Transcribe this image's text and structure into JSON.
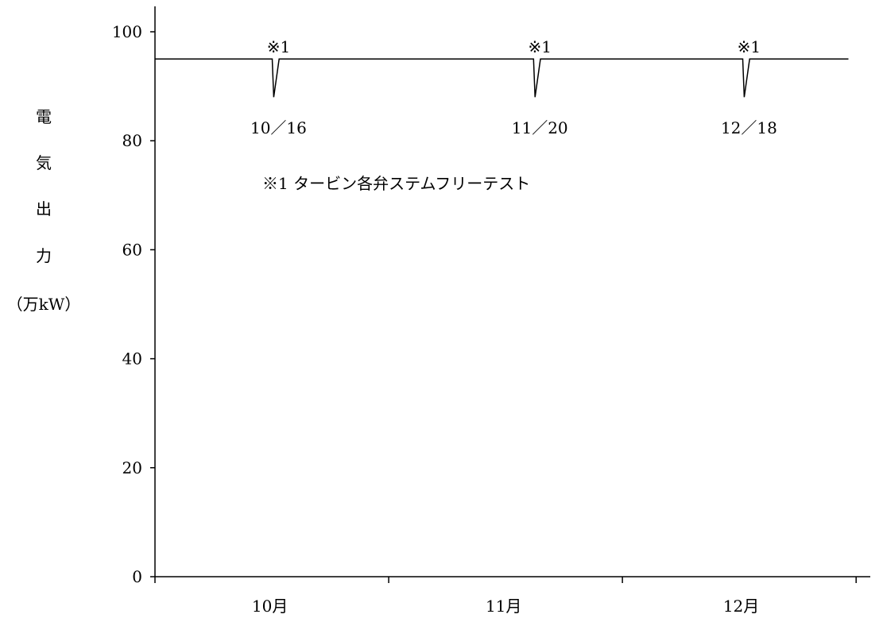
{
  "chart_data": {
    "type": "line",
    "title": "",
    "xlabel": "",
    "ylabel": {
      "chars": [
        "電",
        "気",
        "出",
        "力"
      ],
      "unit": "（万kW）"
    },
    "ylim": [
      0,
      100
    ],
    "yticks": [
      "0",
      "20",
      "40",
      "60",
      "80",
      "100"
    ],
    "x_unit": "day_of_period",
    "xlim": [
      0,
      92
    ],
    "x_tick_positions": [
      0,
      30.5,
      61,
      91.5
    ],
    "months": [
      {
        "label": "10月",
        "x": 15
      },
      {
        "label": "11月",
        "x": 45.5
      },
      {
        "label": "12月",
        "x": 76.5
      }
    ],
    "series": [
      {
        "name": "",
        "color": "#000000",
        "points": [
          {
            "x": 0,
            "y": 95
          },
          {
            "x": 15.3,
            "y": 95
          },
          {
            "x": 15.5,
            "y": 88
          },
          {
            "x": 16.2,
            "y": 95
          },
          {
            "x": 49.4,
            "y": 95
          },
          {
            "x": 49.6,
            "y": 88
          },
          {
            "x": 50.3,
            "y": 95
          },
          {
            "x": 76.7,
            "y": 95
          },
          {
            "x": 76.9,
            "y": 88
          },
          {
            "x": 77.6,
            "y": 95
          },
          {
            "x": 90.5,
            "y": 95
          }
        ]
      }
    ],
    "events": [
      {
        "marker": "※1",
        "date": "10／16",
        "x": 15.5
      },
      {
        "marker": "※1",
        "date": "11／20",
        "x": 49.6
      },
      {
        "marker": "※1",
        "date": "12／18",
        "x": 76.9
      }
    ],
    "note": "※1  タービン各弁ステムフリーテスト",
    "grid": false,
    "legend": "none"
  }
}
